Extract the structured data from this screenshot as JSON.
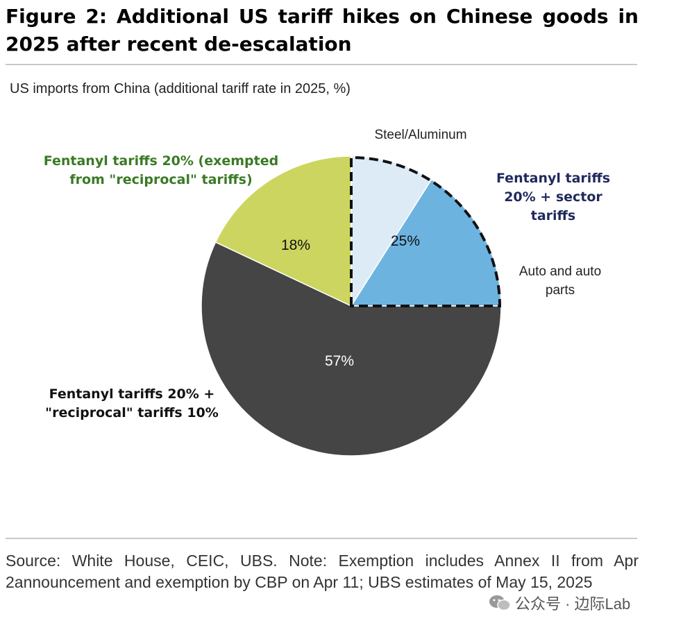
{
  "title": "Figure 2: Additional US tariff hikes on Chinese goods in 2025 after recent de-escalation",
  "footer": {
    "source": "Source: White House, CEIC, UBS. Note: Exemption includes Annex II from Apr 2announcement and exemption by CBP on Apr 11; UBS estimates of May 15, 2025",
    "watermark": "公众号 · 边际Lab"
  },
  "chart_data": {
    "type": "pie",
    "title": "US imports from China (additional tariff rate in 2025, %)",
    "slices": [
      {
        "name": "Steel/Aluminum",
        "value": 9,
        "color": "#ddebf7",
        "label_text": ""
      },
      {
        "name": "Auto and auto parts",
        "value": 16,
        "color": "#6db3e0",
        "label_text": ""
      },
      {
        "name": "Fentanyl tariffs 20% + \"reciprocal\" tariffs 10%",
        "value": 57,
        "color": "#454545",
        "label_text": "57%"
      },
      {
        "name": "Fentanyl tariffs 20% (exempted from \"reciprocal\" tariffs)",
        "value": 18,
        "color": "#ccd560",
        "label_text": "18%"
      }
    ],
    "group_annotation": {
      "label": "Fentanyl tariffs 20% + sector tariffs",
      "value_text": "25%",
      "outline": "dashed"
    },
    "annotations": {
      "steel": "Steel/Aluminum",
      "auto": "Auto and auto parts",
      "sector_group": "Fentanyl tariffs 20% + sector tariffs",
      "reciprocal": "Fentanyl tariffs 20% + \"reciprocal\" tariffs 10%",
      "exempted": "Fentanyl tariffs 20% (exempted from \"reciprocal\" tariffs)"
    },
    "colors": {
      "steel_aluminum": "#ddebf7",
      "auto_parts": "#6db3e0",
      "reciprocal": "#454545",
      "exempted": "#ccd560",
      "exempted_label": "#3a7a24",
      "sector_label": "#1f2a5c"
    }
  }
}
